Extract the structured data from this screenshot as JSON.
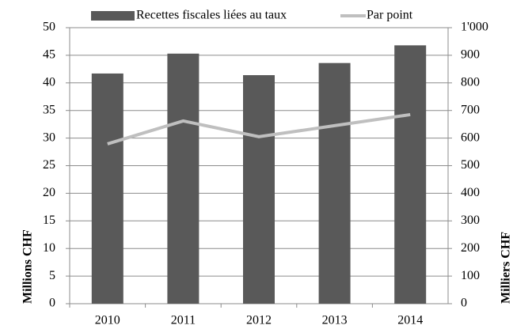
{
  "chart_data": {
    "type": "bar",
    "categories": [
      "2010",
      "2011",
      "2012",
      "2013",
      "2014"
    ],
    "series": [
      {
        "name": "Recettes fiscales liées au taux",
        "type": "bar",
        "color": "#595959",
        "values": [
          41.7,
          45.3,
          41.4,
          43.6,
          46.8
        ]
      },
      {
        "name": "Par point",
        "type": "line",
        "axis": "y2",
        "color": "#bfbfbf",
        "values": [
          579,
          662,
          605,
          645,
          685
        ]
      }
    ],
    "ylabel": "Millions CHF",
    "y2label": "Milliers CHF",
    "ylim": [
      0,
      50
    ],
    "yticks": [
      0,
      5,
      10,
      15,
      20,
      25,
      30,
      35,
      40,
      45,
      50
    ],
    "y2lim": [
      0,
      1000
    ],
    "y2ticks": [
      0,
      100,
      200,
      300,
      400,
      500,
      600,
      700,
      800,
      900,
      {
        "value": 1000,
        "label": "1'000"
      }
    ],
    "grid": true,
    "legend": "top"
  }
}
